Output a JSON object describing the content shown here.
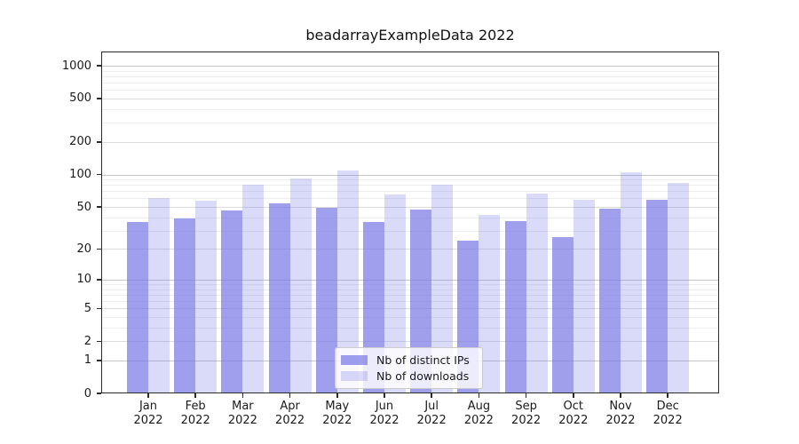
{
  "chart_data": {
    "type": "bar",
    "title": "beadarrayExampleData 2022",
    "categories": [
      "Jan",
      "Feb",
      "Mar",
      "Apr",
      "May",
      "Jun",
      "Jul",
      "Aug",
      "Sep",
      "Oct",
      "Nov",
      "Dec"
    ],
    "year_label": "2022",
    "series": [
      {
        "name": "Nb of distinct IPs",
        "color": "rgba(122,122,232,0.72)",
        "values": [
          36,
          39,
          46,
          54,
          49,
          36,
          47,
          24,
          37,
          26,
          48,
          58
        ]
      },
      {
        "name": "Nb of downloads",
        "color": "rgba(122,122,232,0.28)",
        "values": [
          60,
          57,
          80,
          92,
          108,
          65,
          80,
          42,
          66,
          58,
          104,
          83
        ]
      }
    ],
    "yscale": "log1p",
    "ylim": [
      0,
      1350
    ],
    "yticks": [
      1000,
      500,
      200,
      100,
      50,
      20,
      10,
      5,
      2,
      1,
      0
    ],
    "ytick_labels": [
      "1000",
      "500",
      "200",
      "100",
      "50",
      "20",
      "10",
      "5",
      "2",
      "1",
      "0"
    ],
    "grid": true,
    "legend_position": "lower center inside"
  }
}
